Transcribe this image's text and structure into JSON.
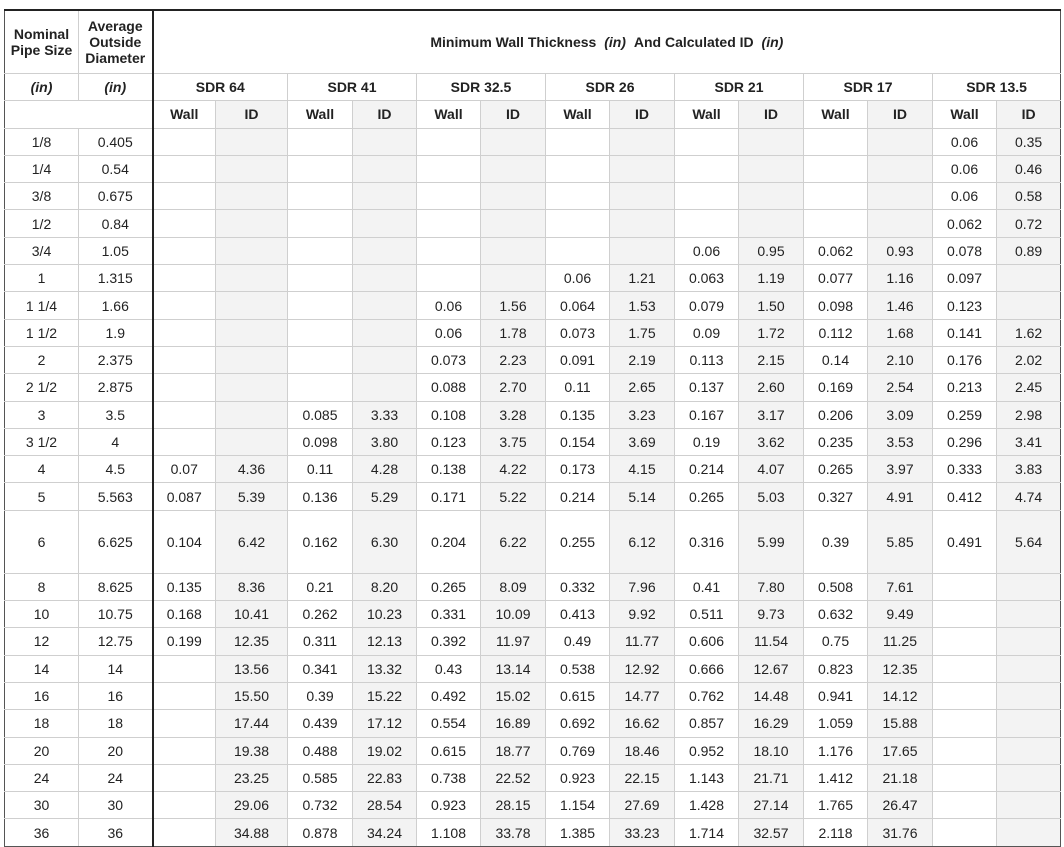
{
  "header": {
    "nominal": "Nominal Pipe Size",
    "od": "Average Outside Diameter",
    "nominal_unit": "(in)",
    "od_unit": "(in)",
    "title": [
      "Minimum Wall Thickness",
      "(in)",
      "And Calculated ID",
      "(in)"
    ]
  },
  "groups": [
    {
      "name": "SDR 64",
      "columns": [
        "Wall",
        "ID"
      ]
    },
    {
      "name": "SDR 41",
      "columns": [
        "Wall",
        "ID"
      ]
    },
    {
      "name": "SDR 32.5",
      "columns": [
        "Wall",
        "ID"
      ]
    },
    {
      "name": "SDR 26",
      "columns": [
        "Wall",
        "ID"
      ]
    },
    {
      "name": "SDR 21",
      "columns": [
        "Wall",
        "ID"
      ]
    },
    {
      "name": "SDR 17",
      "columns": [
        "Wall",
        "ID"
      ]
    },
    {
      "name": "SDR 13.5",
      "columns": [
        "Wall",
        "ID"
      ]
    }
  ],
  "rows": [
    [
      "1/8",
      "0.405",
      null,
      null,
      null,
      null,
      null,
      null,
      null,
      null,
      null,
      null,
      null,
      null,
      "0.06",
      "0.35"
    ],
    [
      "1/4",
      "0.54",
      null,
      null,
      null,
      null,
      null,
      null,
      null,
      null,
      null,
      null,
      null,
      null,
      "0.06",
      "0.46"
    ],
    [
      "3/8",
      "0.675",
      null,
      null,
      null,
      null,
      null,
      null,
      null,
      null,
      null,
      null,
      null,
      null,
      "0.06",
      "0.58"
    ],
    [
      "1/2",
      "0.84",
      null,
      null,
      null,
      null,
      null,
      null,
      null,
      null,
      null,
      null,
      null,
      null,
      "0.062",
      "0.72"
    ],
    [
      "3/4",
      "1.05",
      null,
      null,
      null,
      null,
      null,
      null,
      null,
      null,
      "0.06",
      "0.95",
      "0.062",
      "0.93",
      "0.078",
      "0.89"
    ],
    [
      "1",
      "1.315",
      null,
      null,
      null,
      null,
      null,
      null,
      "0.06",
      "1.21",
      "0.063",
      "1.19",
      "0.077",
      "1.16",
      "0.097",
      null
    ],
    [
      "1 1/4",
      "1.66",
      null,
      null,
      null,
      null,
      "0.06",
      "1.56",
      "0.064",
      "1.53",
      "0.079",
      "1.50",
      "0.098",
      "1.46",
      "0.123",
      null
    ],
    [
      "1 1/2",
      "1.9",
      null,
      null,
      null,
      null,
      "0.06",
      "1.78",
      "0.073",
      "1.75",
      "0.09",
      "1.72",
      "0.112",
      "1.68",
      "0.141",
      "1.62"
    ],
    [
      "2",
      "2.375",
      null,
      null,
      null,
      null,
      "0.073",
      "2.23",
      "0.091",
      "2.19",
      "0.113",
      "2.15",
      "0.14",
      "2.10",
      "0.176",
      "2.02"
    ],
    [
      "2 1/2",
      "2.875",
      null,
      null,
      null,
      null,
      "0.088",
      "2.70",
      "0.11",
      "2.65",
      "0.137",
      "2.60",
      "0.169",
      "2.54",
      "0.213",
      "2.45"
    ],
    [
      "3",
      "3.5",
      null,
      null,
      "0.085",
      "3.33",
      "0.108",
      "3.28",
      "0.135",
      "3.23",
      "0.167",
      "3.17",
      "0.206",
      "3.09",
      "0.259",
      "2.98"
    ],
    [
      "3 1/2",
      "4",
      null,
      null,
      "0.098",
      "3.80",
      "0.123",
      "3.75",
      "0.154",
      "3.69",
      "0.19",
      "3.62",
      "0.235",
      "3.53",
      "0.296",
      "3.41"
    ],
    [
      "4",
      "4.5",
      "0.07",
      "4.36",
      "0.11",
      "4.28",
      "0.138",
      "4.22",
      "0.173",
      "4.15",
      "0.214",
      "4.07",
      "0.265",
      "3.97",
      "0.333",
      "3.83"
    ],
    [
      "5",
      "5.563",
      "0.087",
      "5.39",
      "0.136",
      "5.29",
      "0.171",
      "5.22",
      "0.214",
      "5.14",
      "0.265",
      "5.03",
      "0.327",
      "4.91",
      "0.412",
      "4.74"
    ],
    [
      "6",
      "6.625",
      "0.104",
      "6.42",
      "0.162",
      "6.30",
      "0.204",
      "6.22",
      "0.255",
      "6.12",
      "0.316",
      "5.99",
      "0.39",
      "5.85",
      "0.491",
      "5.64"
    ],
    [
      "8",
      "8.625",
      "0.135",
      "8.36",
      "0.21",
      "8.20",
      "0.265",
      "8.09",
      "0.332",
      "7.96",
      "0.41",
      "7.80",
      "0.508",
      "7.61",
      null,
      null
    ],
    [
      "10",
      "10.75",
      "0.168",
      "10.41",
      "0.262",
      "10.23",
      "0.331",
      "10.09",
      "0.413",
      "9.92",
      "0.511",
      "9.73",
      "0.632",
      "9.49",
      null,
      null
    ],
    [
      "12",
      "12.75",
      "0.199",
      "12.35",
      "0.311",
      "12.13",
      "0.392",
      "11.97",
      "0.49",
      "11.77",
      "0.606",
      "11.54",
      "0.75",
      "11.25",
      null,
      null
    ],
    [
      "14",
      "14",
      null,
      "13.56",
      "0.341",
      "13.32",
      "0.43",
      "13.14",
      "0.538",
      "12.92",
      "0.666",
      "12.67",
      "0.823",
      "12.35",
      null,
      null
    ],
    [
      "16",
      "16",
      null,
      "15.50",
      "0.39",
      "15.22",
      "0.492",
      "15.02",
      "0.615",
      "14.77",
      "0.762",
      "14.48",
      "0.941",
      "14.12",
      null,
      null
    ],
    [
      "18",
      "18",
      null,
      "17.44",
      "0.439",
      "17.12",
      "0.554",
      "16.89",
      "0.692",
      "16.62",
      "0.857",
      "16.29",
      "1.059",
      "15.88",
      null,
      null
    ],
    [
      "20",
      "20",
      null,
      "19.38",
      "0.488",
      "19.02",
      "0.615",
      "18.77",
      "0.769",
      "18.46",
      "0.952",
      "18.10",
      "1.176",
      "17.65",
      null,
      null
    ],
    [
      "24",
      "24",
      null,
      "23.25",
      "0.585",
      "22.83",
      "0.738",
      "22.52",
      "0.923",
      "22.15",
      "1.143",
      "21.71",
      "1.412",
      "21.18",
      null,
      null
    ],
    [
      "30",
      "30",
      null,
      "29.06",
      "0.732",
      "28.54",
      "0.923",
      "28.15",
      "1.154",
      "27.69",
      "1.428",
      "27.14",
      "1.765",
      "26.47",
      null,
      null
    ],
    [
      "36",
      "36",
      null,
      "34.88",
      "0.878",
      "34.24",
      "1.108",
      "33.78",
      "1.385",
      "33.23",
      "1.714",
      "32.57",
      "2.118",
      "31.76",
      null,
      null
    ]
  ]
}
